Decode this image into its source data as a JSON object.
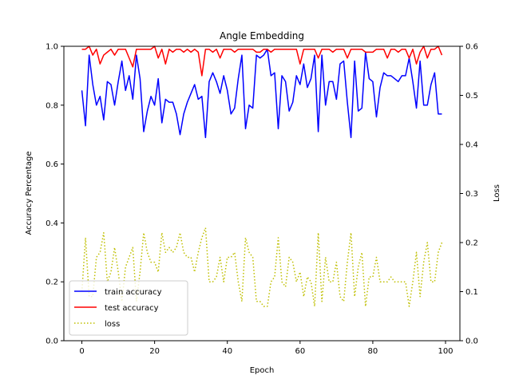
{
  "chart_data": {
    "type": "line",
    "title": "Angle Embedding",
    "xlabel": "Epoch",
    "ylabel": "Accuracy Percentage",
    "y2label": "Loss",
    "xlim": [
      -4.95,
      103.95
    ],
    "ylim": [
      0.0,
      1.0
    ],
    "y2lim": [
      0.0,
      0.6
    ],
    "xticks": [
      0,
      20,
      40,
      60,
      80,
      100
    ],
    "yticks": [
      0.0,
      0.2,
      0.4,
      0.6,
      0.8,
      1.0
    ],
    "y2ticks": [
      0.0,
      0.1,
      0.2,
      0.3,
      0.4,
      0.5,
      0.6
    ],
    "xtick_labels": [
      "0",
      "20",
      "40",
      "60",
      "80",
      "100"
    ],
    "ytick_labels": [
      "0.0",
      "0.2",
      "0.4",
      "0.6",
      "0.8",
      "1.0"
    ],
    "y2tick_labels": [
      "0.0",
      "0.1",
      "0.2",
      "0.3",
      "0.4",
      "0.5",
      "0.6"
    ],
    "grid": false,
    "legend_position": "lower-left",
    "x": [
      0,
      1,
      2,
      3,
      4,
      5,
      6,
      7,
      8,
      9,
      10,
      11,
      12,
      13,
      14,
      15,
      16,
      17,
      18,
      19,
      20,
      21,
      22,
      23,
      24,
      25,
      26,
      27,
      28,
      29,
      30,
      31,
      32,
      33,
      34,
      35,
      36,
      37,
      38,
      39,
      40,
      41,
      42,
      43,
      44,
      45,
      46,
      47,
      48,
      49,
      50,
      51,
      52,
      53,
      54,
      55,
      56,
      57,
      58,
      59,
      60,
      61,
      62,
      63,
      64,
      65,
      66,
      67,
      68,
      69,
      70,
      71,
      72,
      73,
      74,
      75,
      76,
      77,
      78,
      79,
      80,
      81,
      82,
      83,
      84,
      85,
      86,
      87,
      88,
      89,
      90,
      91,
      92,
      93,
      94,
      95,
      96,
      97,
      98,
      99
    ],
    "series": [
      {
        "name": "train accuracy",
        "axis": "left",
        "color": "#0000ff",
        "style": "solid",
        "values": [
          0.85,
          0.73,
          0.97,
          0.87,
          0.8,
          0.83,
          0.75,
          0.88,
          0.87,
          0.8,
          0.88,
          0.95,
          0.85,
          0.9,
          0.82,
          0.97,
          0.89,
          0.71,
          0.78,
          0.83,
          0.8,
          0.89,
          0.74,
          0.82,
          0.81,
          0.81,
          0.77,
          0.7,
          0.77,
          0.81,
          0.84,
          0.87,
          0.82,
          0.83,
          0.69,
          0.88,
          0.91,
          0.88,
          0.84,
          0.9,
          0.85,
          0.77,
          0.79,
          0.89,
          0.97,
          0.72,
          0.8,
          0.79,
          0.97,
          0.96,
          0.97,
          0.99,
          0.9,
          0.91,
          0.72,
          0.9,
          0.88,
          0.78,
          0.81,
          0.9,
          0.87,
          0.94,
          0.86,
          0.89,
          0.97,
          0.71,
          0.97,
          0.8,
          0.88,
          0.88,
          0.82,
          0.94,
          0.95,
          0.81,
          0.69,
          0.95,
          0.78,
          0.79,
          0.98,
          0.89,
          0.88,
          0.76,
          0.86,
          0.91,
          0.9,
          0.9,
          0.89,
          0.88,
          0.9,
          0.9,
          0.96,
          0.88,
          0.79,
          0.95,
          0.8,
          0.8,
          0.87,
          0.91,
          0.77,
          0.77
        ]
      },
      {
        "name": "test accuracy",
        "axis": "left",
        "color": "#ff0000",
        "style": "solid",
        "values": [
          0.99,
          0.99,
          1.0,
          0.97,
          0.99,
          0.94,
          0.97,
          0.98,
          0.99,
          0.97,
          0.99,
          0.99,
          0.99,
          0.96,
          0.93,
          0.99,
          0.99,
          0.99,
          0.99,
          0.99,
          1.0,
          0.96,
          0.99,
          0.94,
          0.99,
          0.98,
          0.99,
          0.99,
          0.98,
          0.99,
          0.98,
          0.99,
          0.98,
          0.9,
          0.99,
          0.99,
          0.98,
          0.99,
          0.96,
          0.99,
          0.99,
          0.99,
          0.98,
          0.99,
          0.99,
          0.99,
          0.99,
          0.99,
          0.98,
          0.98,
          0.99,
          0.99,
          0.98,
          0.99,
          0.99,
          0.99,
          0.99,
          0.99,
          0.99,
          0.99,
          0.94,
          0.99,
          0.99,
          0.99,
          0.99,
          0.96,
          0.99,
          0.99,
          0.99,
          0.98,
          0.99,
          0.99,
          0.99,
          0.96,
          0.99,
          0.99,
          0.99,
          0.99,
          0.98,
          0.98,
          0.98,
          0.99,
          0.99,
          0.99,
          0.96,
          0.99,
          0.99,
          0.98,
          0.99,
          0.99,
          0.96,
          0.99,
          0.94,
          0.98,
          1.0,
          0.96,
          0.99,
          0.99,
          1.0,
          0.97
        ]
      },
      {
        "name": "loss",
        "axis": "right",
        "color": "#bfbf00",
        "style": "dotted",
        "values": [
          0.1,
          0.21,
          0.09,
          0.09,
          0.17,
          0.18,
          0.22,
          0.12,
          0.14,
          0.19,
          0.14,
          0.08,
          0.15,
          0.17,
          0.19,
          0.08,
          0.14,
          0.22,
          0.18,
          0.16,
          0.16,
          0.14,
          0.22,
          0.18,
          0.19,
          0.18,
          0.19,
          0.22,
          0.18,
          0.17,
          0.17,
          0.14,
          0.18,
          0.21,
          0.23,
          0.12,
          0.12,
          0.13,
          0.17,
          0.12,
          0.17,
          0.17,
          0.18,
          0.12,
          0.08,
          0.21,
          0.18,
          0.17,
          0.08,
          0.08,
          0.07,
          0.07,
          0.12,
          0.13,
          0.21,
          0.12,
          0.11,
          0.17,
          0.16,
          0.12,
          0.14,
          0.09,
          0.13,
          0.12,
          0.07,
          0.22,
          0.08,
          0.17,
          0.12,
          0.12,
          0.16,
          0.09,
          0.08,
          0.16,
          0.22,
          0.09,
          0.15,
          0.18,
          0.07,
          0.13,
          0.13,
          0.17,
          0.12,
          0.12,
          0.12,
          0.13,
          0.12,
          0.12,
          0.12,
          0.12,
          0.07,
          0.12,
          0.18,
          0.09,
          0.16,
          0.2,
          0.12,
          0.12,
          0.18,
          0.2
        ]
      }
    ]
  }
}
